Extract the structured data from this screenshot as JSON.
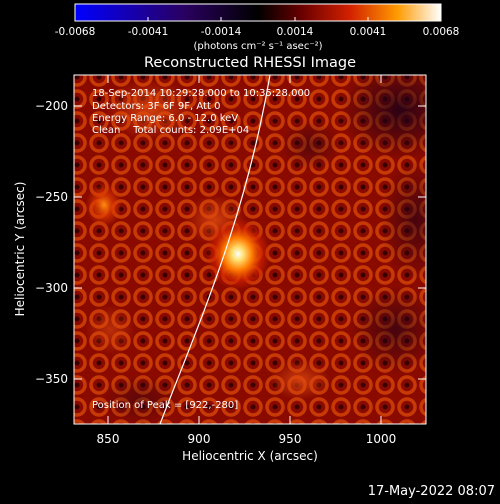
{
  "colorbar": {
    "tick_labels": [
      "-0.0068",
      "-0.0041",
      "-0.0014",
      "0.0014",
      "0.0041",
      "0.0068"
    ],
    "units": "(photons cm⁻² s⁻¹ asec⁻²)",
    "colormap": [
      "#0000ff",
      "#000000",
      "#b40000",
      "#ffb000",
      "#ffffff"
    ]
  },
  "title": "Reconstructed RHESSI Image",
  "annotations": {
    "time": "18-Sep-2014 10:29:28.000 to 10:35:28.000",
    "detectors": "Detectors: 3F 6F 9F, Att 0",
    "energy": "Energy Range: 6.0 - 12.0 keV",
    "method": "Clean    Total counts: 2.09E+04",
    "peak": "Position of Peak = [922,-280]"
  },
  "axes": {
    "xlabel": "Heliocentric X (arcsec)",
    "ylabel": "Heliocentric Y (arcsec)",
    "x_ticks": [
      "850",
      "900",
      "950",
      "1000"
    ],
    "y_ticks": [
      "−200",
      "−250",
      "−300",
      "−350"
    ]
  },
  "timestamp": "17-May-2022 08:07",
  "image_stats": {
    "peak_position": [
      922,
      -280
    ],
    "secondary_source": [
      852,
      -258
    ],
    "x_range": [
      833,
      1026
    ],
    "y_range": [
      -374,
      -183
    ]
  }
}
